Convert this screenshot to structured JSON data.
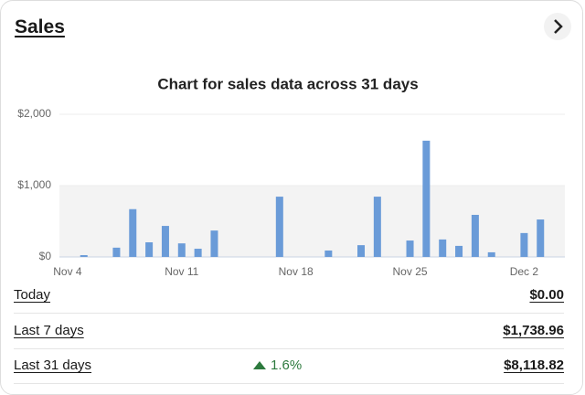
{
  "header": {
    "title": "Sales"
  },
  "chart_data": {
    "type": "bar",
    "title": "Chart for sales data across 31 days",
    "categories": [
      "Nov 4",
      null,
      null,
      null,
      null,
      null,
      null,
      "Nov 11",
      null,
      null,
      null,
      null,
      null,
      null,
      "Nov 18",
      null,
      null,
      null,
      null,
      null,
      null,
      "Nov 25",
      null,
      null,
      null,
      null,
      null,
      null,
      "Dec 2",
      null,
      null
    ],
    "values": [
      0,
      25,
      0,
      130,
      670,
      205,
      435,
      190,
      115,
      370,
      0,
      0,
      0,
      845,
      0,
      0,
      90,
      0,
      165,
      845,
      0,
      230,
      1630,
      245,
      155,
      590,
      65,
      0,
      335,
      525,
      0
    ],
    "color": "#6a9bd8",
    "ylim": [
      0,
      2000
    ],
    "yticks": [
      {
        "value": 0,
        "label": "$0"
      },
      {
        "value": 1000,
        "label": "$1,000"
      },
      {
        "value": 2000,
        "label": "$2,000"
      }
    ],
    "grid": true
  },
  "summary": {
    "rows": [
      {
        "label": "Today",
        "amount": "$0.00"
      },
      {
        "label": "Last 7 days",
        "amount": "$1,738.96"
      },
      {
        "label": "Last 31 days",
        "change": "1.6%",
        "amount": "$8,118.82"
      }
    ]
  }
}
